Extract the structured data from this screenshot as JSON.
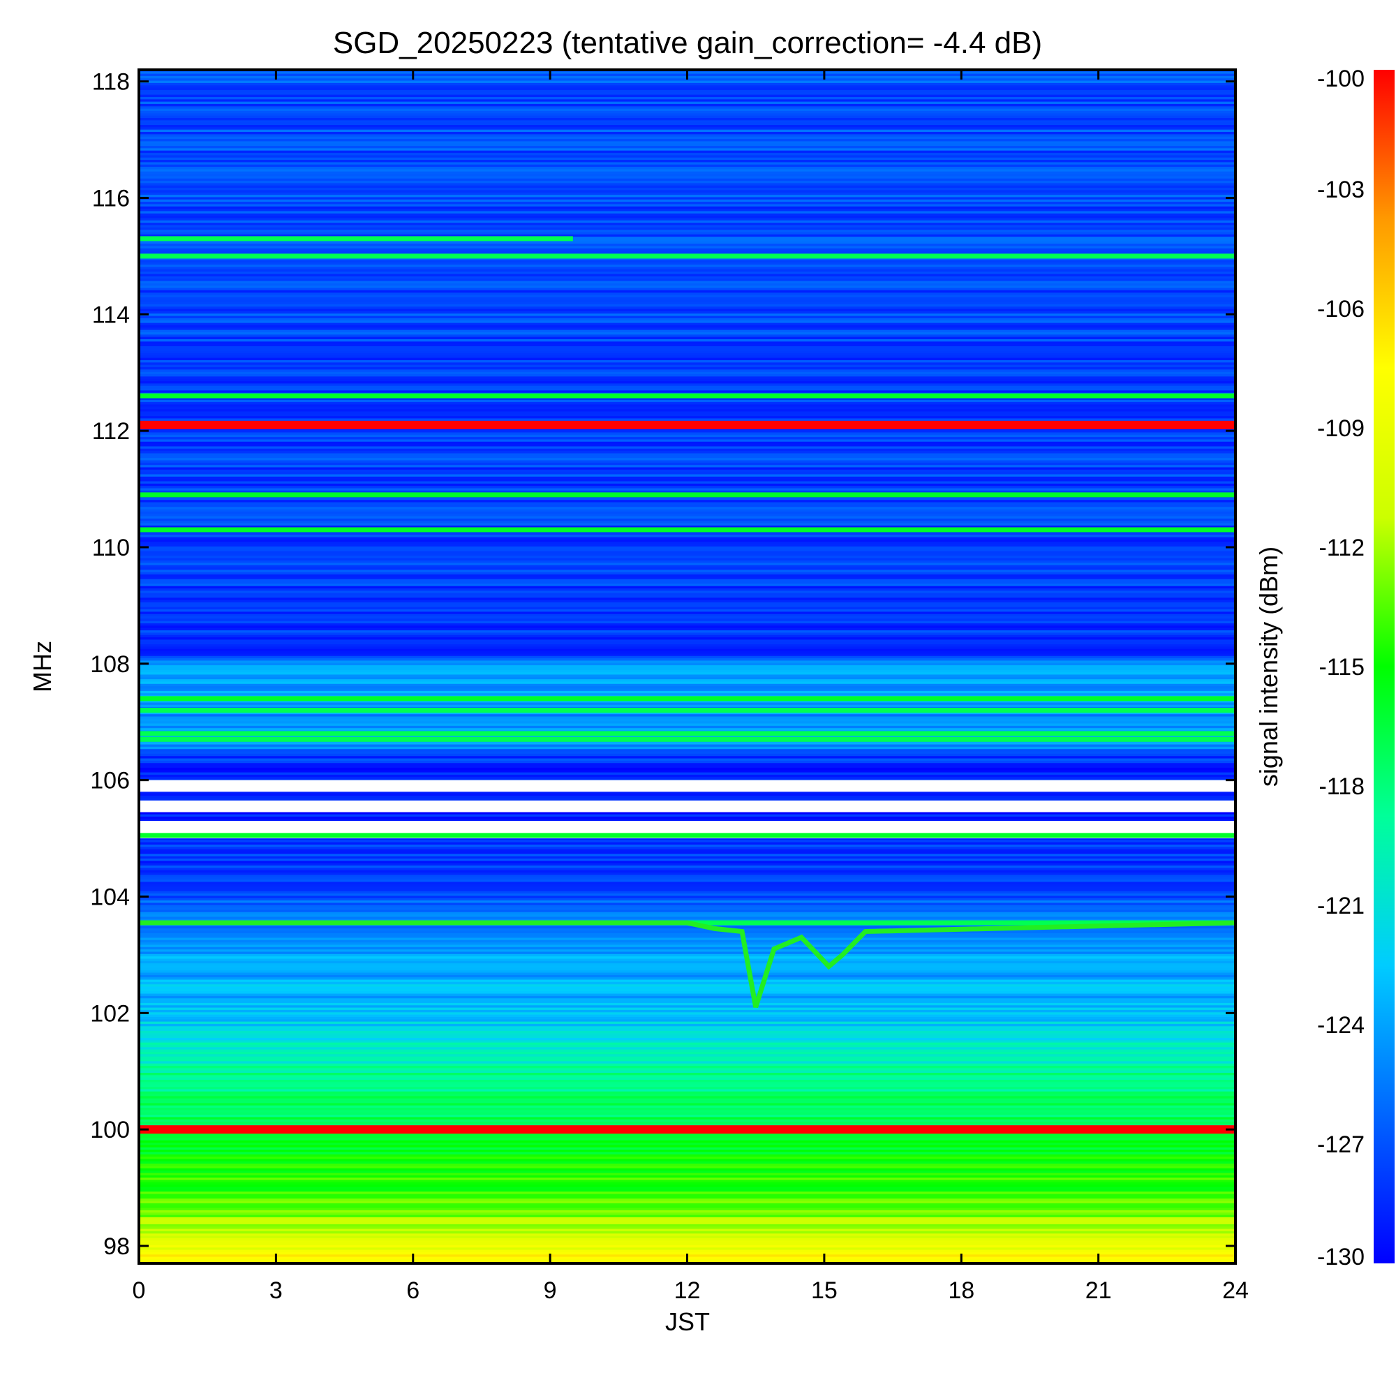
{
  "chart_data": {
    "type": "heatmap",
    "title": "SGD_20250223 (tentative gain_correction= -4.4 dB)",
    "xlabel": "JST",
    "ylabel": "MHz",
    "colorbar_label": "signal intensity (dBm)",
    "xlim": [
      0,
      24
    ],
    "ylim": [
      97.7,
      118.2
    ],
    "xticks": [
      0,
      3,
      6,
      9,
      12,
      15,
      18,
      21,
      24
    ],
    "yticks": [
      98,
      100,
      102,
      104,
      106,
      108,
      110,
      112,
      114,
      116,
      118
    ],
    "colorbar_range": [
      -130,
      -100
    ],
    "colorbar_ticks": [
      -130,
      -127,
      -124,
      -121,
      -118,
      -115,
      -112,
      -109,
      -106,
      -103,
      -100
    ],
    "colormap": [
      "#0000ff",
      "#0066ff",
      "#00ccff",
      "#00ff99",
      "#00ff00",
      "#ccff00",
      "#ffff00",
      "#ff9900",
      "#ff0000"
    ],
    "background_profile": [
      {
        "freq": 97.7,
        "dbm": -107
      },
      {
        "freq": 98.2,
        "dbm": -111
      },
      {
        "freq": 98.8,
        "dbm": -114
      },
      {
        "freq": 100.0,
        "dbm": -116
      },
      {
        "freq": 101.0,
        "dbm": -119
      },
      {
        "freq": 102.0,
        "dbm": -123
      },
      {
        "freq": 103.0,
        "dbm": -124
      },
      {
        "freq": 103.8,
        "dbm": -126
      },
      {
        "freq": 104.4,
        "dbm": -128
      },
      {
        "freq": 106.3,
        "dbm": -129
      },
      {
        "freq": 106.6,
        "dbm": -125
      },
      {
        "freq": 108.0,
        "dbm": -124
      },
      {
        "freq": 108.1,
        "dbm": -128
      },
      {
        "freq": 118.2,
        "dbm": -127
      }
    ],
    "stations": [
      {
        "freq": 100.0,
        "dbm": -100,
        "x_range": [
          0,
          24
        ]
      },
      {
        "freq": 112.1,
        "dbm": -100,
        "x_range": [
          0,
          24
        ]
      },
      {
        "freq": 115.3,
        "dbm": -117,
        "x_range": [
          0,
          9.5
        ]
      },
      {
        "freq": 115.0,
        "dbm": -117,
        "x_range": [
          0,
          24
        ]
      },
      {
        "freq": 112.6,
        "dbm": -116,
        "x_range": [
          0,
          24
        ]
      },
      {
        "freq": 110.9,
        "dbm": -116,
        "x_range": [
          0,
          24
        ]
      },
      {
        "freq": 110.3,
        "dbm": -116,
        "x_range": [
          0,
          24
        ]
      },
      {
        "freq": 107.4,
        "dbm": -116,
        "x_range": [
          0,
          24
        ]
      },
      {
        "freq": 107.2,
        "dbm": -117,
        "x_range": [
          0,
          24
        ]
      },
      {
        "freq": 106.8,
        "dbm": -117,
        "x_range": [
          0,
          24
        ]
      },
      {
        "freq": 106.7,
        "dbm": -117,
        "x_range": [
          0,
          24
        ]
      },
      {
        "freq": 105.05,
        "dbm": -116,
        "x_range": [
          0,
          24
        ]
      },
      {
        "freq": 103.55,
        "dbm": -117,
        "x_range": [
          0,
          24
        ]
      }
    ],
    "blank_bands": [
      {
        "from": 105.0,
        "to": 105.3
      },
      {
        "from": 105.45,
        "to": 105.65
      },
      {
        "from": 105.8,
        "to": 106.0
      }
    ],
    "dip_curve": [
      [
        0,
        103.55
      ],
      [
        12.0,
        103.55
      ],
      [
        12.6,
        103.45
      ],
      [
        13.2,
        103.4
      ],
      [
        13.5,
        102.1
      ],
      [
        13.9,
        103.1
      ],
      [
        14.5,
        103.3
      ],
      [
        15.1,
        102.8
      ],
      [
        15.4,
        103.0
      ],
      [
        15.9,
        103.4
      ],
      [
        24,
        103.55
      ]
    ]
  }
}
